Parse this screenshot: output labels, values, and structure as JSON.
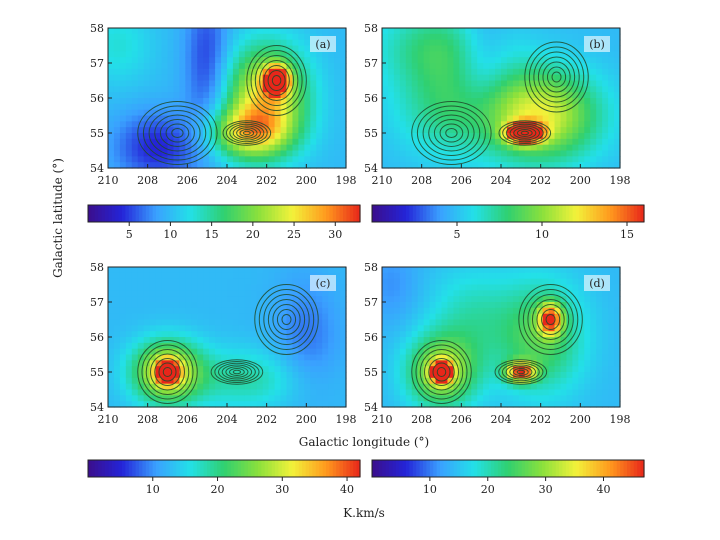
{
  "chart_data": {
    "type": "heatmap",
    "xlabel": "Galactic longitude (°)",
    "ylabel": "Galactic latitude (°)",
    "colorbar_unit": "K.km/s",
    "xlim": [
      210,
      198
    ],
    "ylim": [
      54,
      58
    ],
    "x_ticks": [
      "210",
      "208",
      "206",
      "204",
      "202",
      "200",
      "198"
    ],
    "y_ticks": [
      "54",
      "55",
      "56",
      "57",
      "58"
    ],
    "colormap": [
      "#3b0e8c",
      "#2424d8",
      "#3aa0ff",
      "#23e0e8",
      "#30d070",
      "#8ae03c",
      "#f2f23a",
      "#ff9a1e",
      "#e8261a"
    ],
    "background_color": "#3fb0ff",
    "contour_color": "#1f4a2a",
    "contour_levels": 7,
    "panels": [
      {
        "label": "(a)",
        "colorbar": {
          "min": 0,
          "max": 33,
          "ticks": [
            5,
            10,
            15,
            20,
            25,
            30
          ]
        },
        "blobs": [
          {
            "l": 201.5,
            "b": 56.5,
            "peak": 30,
            "sig_l": 0.4,
            "sig_b": 0.25
          },
          {
            "l": 202.0,
            "b": 56.0,
            "peak": 16,
            "sig_l": 1.4,
            "sig_b": 1.0
          },
          {
            "l": 203.0,
            "b": 55.0,
            "peak": 12,
            "sig_l": 1.4,
            "sig_b": 0.5
          },
          {
            "l": 209.5,
            "b": 57.5,
            "peak": 3,
            "sig_l": 1.2,
            "sig_b": 0.8
          },
          {
            "l": 207.5,
            "b": 54.6,
            "peak": -6,
            "sig_l": 1.5,
            "sig_b": 0.7
          },
          {
            "l": 205.0,
            "b": 57.0,
            "peak": -5,
            "sig_l": 0.8,
            "sig_b": 1.5
          }
        ],
        "contours": [
          {
            "l": 201.5,
            "b": 56.5,
            "rl": 1.5,
            "rb": 1.0
          },
          {
            "l": 206.5,
            "b": 55.0,
            "rl": 2.0,
            "rb": 0.9
          },
          {
            "l": 203.0,
            "b": 55.0,
            "rl": 1.2,
            "rb": 0.35
          }
        ]
      },
      {
        "label": "(b)",
        "colorbar": {
          "min": 0,
          "max": 16,
          "ticks": [
            5,
            10,
            15
          ]
        },
        "blobs": [
          {
            "l": 202.8,
            "b": 55.0,
            "peak": 14,
            "sig_l": 0.6,
            "sig_b": 0.2
          },
          {
            "l": 202.0,
            "b": 55.5,
            "peak": 7,
            "sig_l": 2.0,
            "sig_b": 0.9
          },
          {
            "l": 206.5,
            "b": 55.8,
            "peak": 3,
            "sig_l": 2.0,
            "sig_b": 1.0
          },
          {
            "l": 207.0,
            "b": 57.5,
            "peak": 3,
            "sig_l": 2.2,
            "sig_b": 0.8
          },
          {
            "l": 205.0,
            "b": 57.0,
            "peak": -2,
            "sig_l": 1.0,
            "sig_b": 1.2
          }
        ],
        "contours": [
          {
            "l": 201.2,
            "b": 56.6,
            "rl": 1.6,
            "rb": 1.0
          },
          {
            "l": 206.5,
            "b": 55.0,
            "rl": 2.0,
            "rb": 0.9
          },
          {
            "l": 202.8,
            "b": 55.0,
            "rl": 1.3,
            "rb": 0.35
          }
        ]
      },
      {
        "label": "(c)",
        "colorbar": {
          "min": 0,
          "max": 42,
          "ticks": [
            10,
            20,
            30,
            40
          ]
        },
        "blobs": [
          {
            "l": 207.0,
            "b": 55.0,
            "peak": 42,
            "sig_l": 0.35,
            "sig_b": 0.2
          },
          {
            "l": 207.0,
            "b": 55.0,
            "peak": 20,
            "sig_l": 1.2,
            "sig_b": 0.6
          },
          {
            "l": 203.0,
            "b": 54.8,
            "peak": 6,
            "sig_l": 2.0,
            "sig_b": 0.6
          },
          {
            "l": 200.0,
            "b": 56.0,
            "peak": -4,
            "sig_l": 1.2,
            "sig_b": 1.2
          }
        ],
        "contours": [
          {
            "l": 207.0,
            "b": 55.0,
            "rl": 1.5,
            "rb": 0.9
          },
          {
            "l": 201.0,
            "b": 56.5,
            "rl": 1.6,
            "rb": 1.0
          },
          {
            "l": 203.5,
            "b": 55.0,
            "rl": 1.3,
            "rb": 0.35
          }
        ]
      },
      {
        "label": "(d)",
        "colorbar": {
          "min": 0,
          "max": 47,
          "ticks": [
            10,
            20,
            30,
            40
          ]
        },
        "blobs": [
          {
            "l": 207.0,
            "b": 55.0,
            "peak": 40,
            "sig_l": 0.35,
            "sig_b": 0.2
          },
          {
            "l": 207.0,
            "b": 55.0,
            "peak": 18,
            "sig_l": 1.2,
            "sig_b": 0.7
          },
          {
            "l": 203.0,
            "b": 55.0,
            "peak": 30,
            "sig_l": 0.5,
            "sig_b": 0.2
          },
          {
            "l": 201.5,
            "b": 56.5,
            "peak": 28,
            "sig_l": 0.4,
            "sig_b": 0.3
          },
          {
            "l": 202.0,
            "b": 56.0,
            "peak": 12,
            "sig_l": 1.5,
            "sig_b": 1.1
          },
          {
            "l": 205.5,
            "b": 56.5,
            "peak": 6,
            "sig_l": 1.5,
            "sig_b": 1.0
          },
          {
            "l": 209.5,
            "b": 57.5,
            "peak": -3,
            "sig_l": 1.0,
            "sig_b": 0.8
          }
        ],
        "contours": [
          {
            "l": 207.0,
            "b": 55.0,
            "rl": 1.5,
            "rb": 0.9
          },
          {
            "l": 201.5,
            "b": 56.5,
            "rl": 1.6,
            "rb": 1.0
          },
          {
            "l": 203.0,
            "b": 55.0,
            "rl": 1.3,
            "rb": 0.35
          }
        ]
      }
    ]
  }
}
